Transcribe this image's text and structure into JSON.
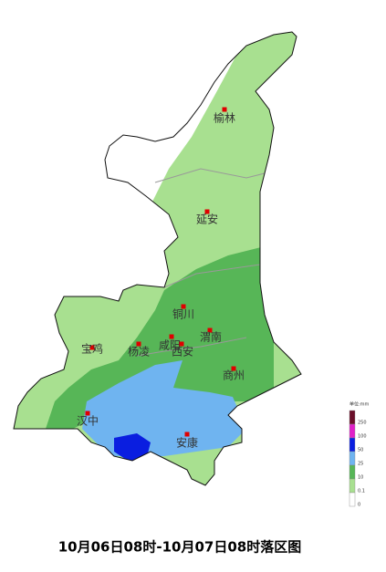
{
  "map": {
    "cities": [
      {
        "name": "榆林"
      },
      {
        "name": "延安"
      },
      {
        "name": "铜川"
      },
      {
        "name": "宝鸡"
      },
      {
        "name": "杨凌"
      },
      {
        "name": "咸阳"
      },
      {
        "name": "西安"
      },
      {
        "name": "渭南"
      },
      {
        "name": "商州"
      },
      {
        "name": "汉中"
      },
      {
        "name": "安康"
      }
    ],
    "legend": {
      "title": "单位:mm",
      "items": [
        {
          "label": "250",
          "color": "#6b0f2a"
        },
        {
          "label": "100",
          "color": "#e020c8"
        },
        {
          "label": "50",
          "color": "#0a1ee0"
        },
        {
          "label": "25",
          "color": "#6fb4f0"
        },
        {
          "label": "10",
          "color": "#57b657"
        },
        {
          "label": "0.1",
          "color": "#a8e090"
        },
        {
          "label": "0",
          "color": "#ffffff"
        }
      ]
    },
    "caption": "10月06日08时-10月07日08时落区图"
  }
}
